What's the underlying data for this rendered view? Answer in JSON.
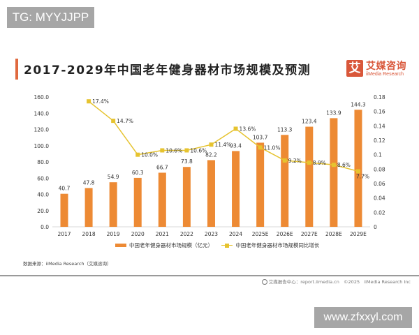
{
  "watermarks": {
    "top": "TG: MYYJJPP",
    "bottom": "www.zfxxyl.com"
  },
  "header": {
    "title": "2017-2029年中国老年健身器材市场规模及预测",
    "logo_glyph": "艾",
    "logo_cn": "艾媒咨询",
    "logo_en": "iiMedia Research"
  },
  "colors": {
    "bar": "#ed8a34",
    "line": "#e6c32f",
    "accent": "#e0693f"
  },
  "chart_data": {
    "type": "bar+line",
    "title": "2017-2029年中国老年健身器材市场规模及预测",
    "categories": [
      "2017",
      "2018",
      "2019",
      "2020",
      "2021",
      "2022",
      "2023",
      "2024",
      "2025E",
      "2026E",
      "2027E",
      "2028E",
      "2029E"
    ],
    "series": [
      {
        "name": "中国老年健身器材市场规模（亿元）",
        "type": "bar",
        "axis": "left",
        "values": [
          40.7,
          47.8,
          54.9,
          60.3,
          66.7,
          73.8,
          82.2,
          93.4,
          103.7,
          113.3,
          123.4,
          133.9,
          144.3
        ],
        "labels": [
          "40.7",
          "47.8",
          "54.9",
          "60.3",
          "66.7",
          "73.8",
          "82.2",
          "93.4",
          "103.7",
          "113.3",
          "123.4",
          "133.9",
          "144.3"
        ]
      },
      {
        "name": "中国老年健身器材市场规模同比增长",
        "type": "line",
        "axis": "right",
        "values": [
          null,
          0.174,
          0.147,
          0.1,
          0.106,
          0.106,
          0.114,
          0.136,
          0.11,
          0.092,
          0.089,
          0.086,
          0.077
        ],
        "labels": [
          null,
          "17.4%",
          "14.7%",
          "10.0%",
          "10.6%",
          "10.6%",
          "11.4%",
          "13.6%",
          "11.0%",
          "9.2%",
          "8.9%",
          "8.6%",
          "7.7%"
        ]
      }
    ],
    "y_left": {
      "min": 0,
      "max": 160,
      "ticks": [
        "0.0",
        "20.0",
        "40.0",
        "60.0",
        "80.0",
        "100.0",
        "120.0",
        "140.0",
        "160.0"
      ],
      "tick_values": [
        0,
        20,
        40,
        60,
        80,
        100,
        120,
        140,
        160
      ]
    },
    "y_right": {
      "min": 0,
      "max": 0.18,
      "ticks": [
        "0",
        "0.02",
        "0.04",
        "0.06",
        "0.08",
        "0.1",
        "0.12",
        "0.14",
        "0.16",
        "0.18"
      ],
      "tick_values": [
        0,
        0.02,
        0.04,
        0.06,
        0.08,
        0.1,
        0.12,
        0.14,
        0.16,
        0.18
      ]
    },
    "grid": false,
    "legend_position": "bottom"
  },
  "source": "数据来源：iiMedia Research（艾媒咨询）",
  "footer": {
    "text": "艾媒报告中心：report.iimedia.cn",
    "copyright": "©2025",
    "company": "iiMedia Research Inc"
  }
}
